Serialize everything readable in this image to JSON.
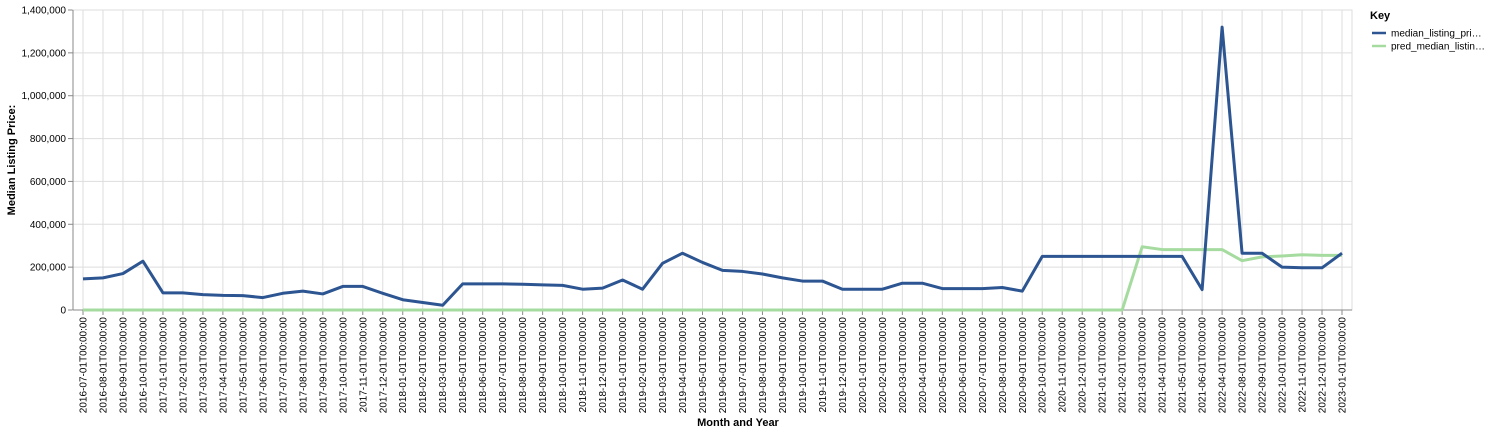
{
  "chart_data": {
    "type": "line",
    "x_label": "Month and Year",
    "y_label": "Median Listing Price:",
    "legend_title": "Key",
    "legend_position": "right",
    "grid": true,
    "categories": [
      "2016-07-01T00:00:00",
      "2016-08-01T00:00:00",
      "2016-09-01T00:00:00",
      "2016-10-01T00:00:00",
      "2017-01-01T00:00:00",
      "2017-02-01T00:00:00",
      "2017-03-01T00:00:00",
      "2017-04-01T00:00:00",
      "2017-05-01T00:00:00",
      "2017-06-01T00:00:00",
      "2017-07-01T00:00:00",
      "2017-08-01T00:00:00",
      "2017-09-01T00:00:00",
      "2017-10-01T00:00:00",
      "2017-11-01T00:00:00",
      "2017-12-01T00:00:00",
      "2018-01-01T00:00:00",
      "2018-02-01T00:00:00",
      "2018-03-01T00:00:00",
      "2018-05-01T00:00:00",
      "2018-06-01T00:00:00",
      "2018-07-01T00:00:00",
      "2018-08-01T00:00:00",
      "2018-09-01T00:00:00",
      "2018-10-01T00:00:00",
      "2018-11-01T00:00:00",
      "2018-12-01T00:00:00",
      "2019-01-01T00:00:00",
      "2019-02-01T00:00:00",
      "2019-03-01T00:00:00",
      "2019-04-01T00:00:00",
      "2019-05-01T00:00:00",
      "2019-06-01T00:00:00",
      "2019-07-01T00:00:00",
      "2019-08-01T00:00:00",
      "2019-09-01T00:00:00",
      "2019-10-01T00:00:00",
      "2019-11-01T00:00:00",
      "2019-12-01T00:00:00",
      "2020-01-01T00:00:00",
      "2020-02-01T00:00:00",
      "2020-03-01T00:00:00",
      "2020-04-01T00:00:00",
      "2020-05-01T00:00:00",
      "2020-06-01T00:00:00",
      "2020-07-01T00:00:00",
      "2020-08-01T00:00:00",
      "2020-09-01T00:00:00",
      "2020-10-01T00:00:00",
      "2020-11-01T00:00:00",
      "2020-12-01T00:00:00",
      "2021-01-01T00:00:00",
      "2021-02-01T00:00:00",
      "2021-03-01T00:00:00",
      "2021-04-01T00:00:00",
      "2021-05-01T00:00:00",
      "2021-06-01T00:00:00",
      "2022-04-01T00:00:00",
      "2022-08-01T00:00:00",
      "2022-09-01T00:00:00",
      "2022-10-01T00:00:00",
      "2022-11-01T00:00:00",
      "2022-12-01T00:00:00",
      "2023-01-01T00:00:00"
    ],
    "series": [
      {
        "name": "median_listing_pri…",
        "color": "#2c5591",
        "values": [
          145000,
          150000,
          170000,
          228000,
          80000,
          80000,
          72000,
          68000,
          67000,
          58000,
          78000,
          88000,
          75000,
          110000,
          110000,
          78000,
          48000,
          35000,
          22000,
          122000,
          122000,
          122000,
          120000,
          117000,
          115000,
          97000,
          102000,
          140000,
          97000,
          218000,
          265000,
          222000,
          185000,
          180000,
          168000,
          150000,
          135000,
          135000,
          97000,
          97000,
          97000,
          125000,
          125000,
          100000,
          100000,
          100000,
          105000,
          88000,
          250000,
          250000,
          250000,
          250000,
          250000,
          250000,
          250000,
          250000,
          95000,
          1320000,
          265000,
          265000,
          200000,
          197000,
          197000,
          265000
        ]
      },
      {
        "name": "pred_median_listin…",
        "color": "#a6dba0",
        "values": [
          0,
          0,
          0,
          0,
          0,
          0,
          0,
          0,
          0,
          0,
          0,
          0,
          0,
          0,
          0,
          0,
          0,
          0,
          0,
          0,
          0,
          0,
          0,
          0,
          0,
          0,
          0,
          0,
          0,
          0,
          0,
          0,
          0,
          0,
          0,
          0,
          0,
          0,
          0,
          0,
          0,
          0,
          0,
          0,
          0,
          0,
          0,
          0,
          0,
          0,
          0,
          0,
          0,
          295000,
          282000,
          282000,
          282000,
          282000,
          230000,
          248000,
          252000,
          258000,
          255000,
          255000
        ]
      }
    ],
    "ylim": [
      0,
      1400000
    ],
    "yticks": [
      0,
      {
        "value": 200000,
        "label": "200,000"
      },
      {
        "value": 400000,
        "label": "400,000"
      },
      {
        "value": 600000,
        "label": "600,000"
      },
      {
        "value": 800000,
        "label": "800,000"
      },
      {
        "value": 1000000,
        "label": "1,000,000"
      },
      {
        "value": 1200000,
        "label": "1,200,000"
      },
      {
        "value": 1400000,
        "label": "1,400,000"
      }
    ]
  }
}
